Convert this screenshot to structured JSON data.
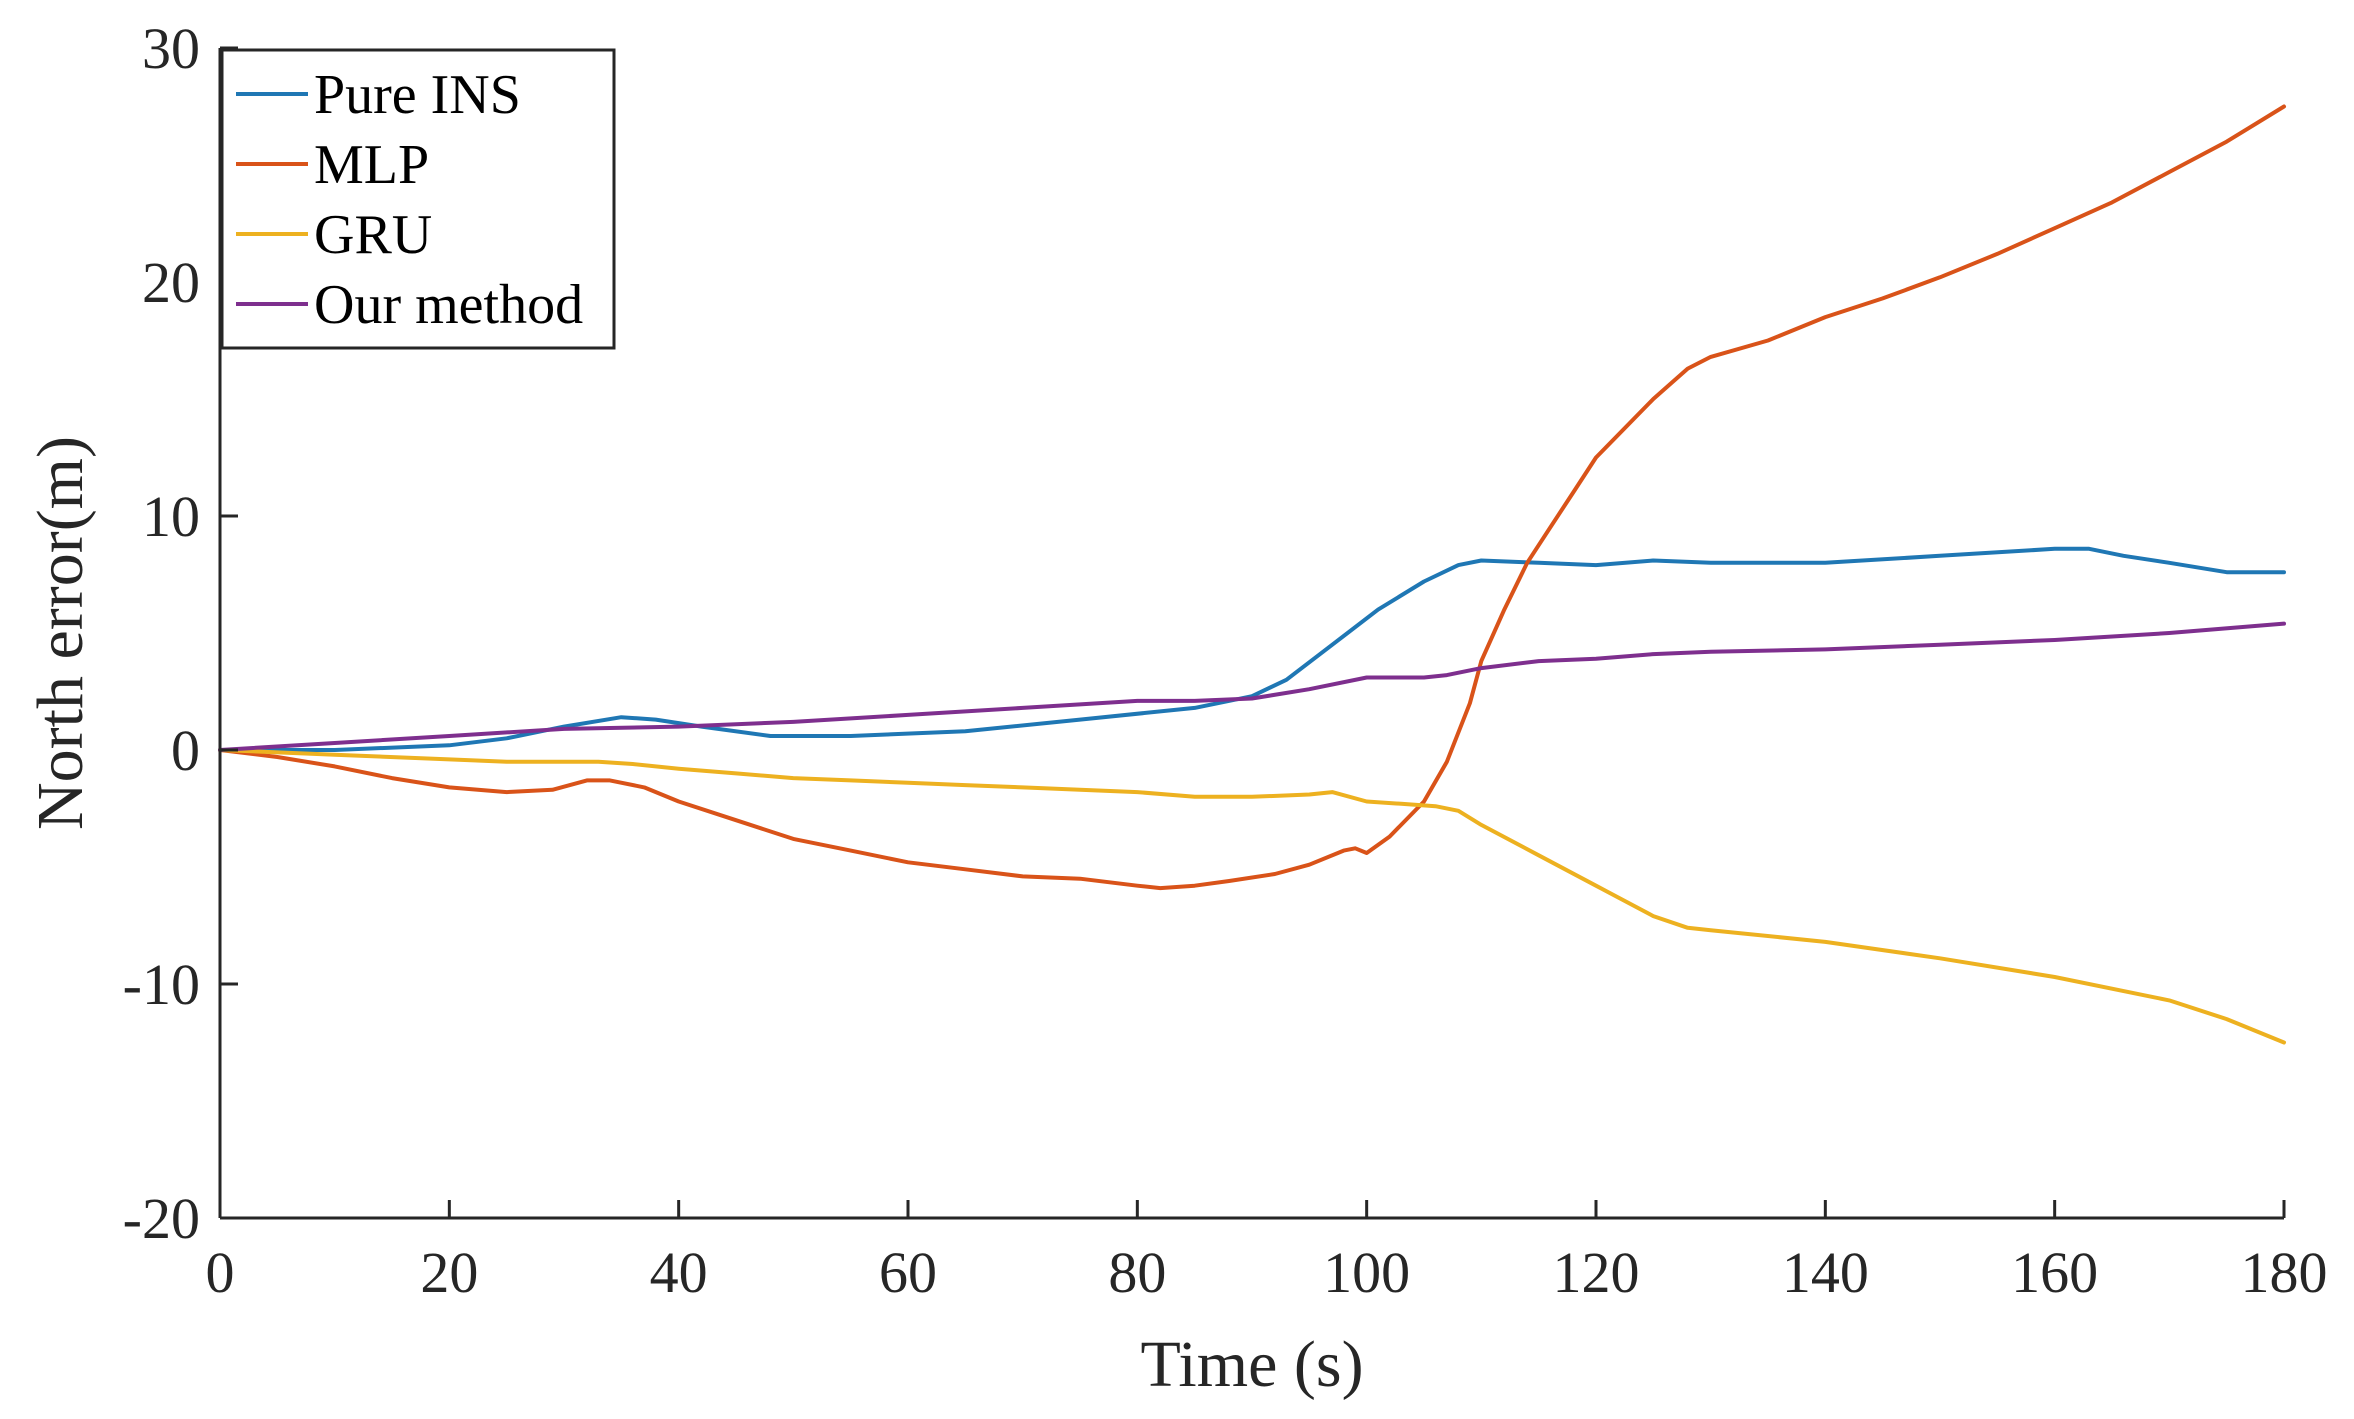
{
  "chart_data": {
    "type": "line",
    "title": "",
    "xlabel": "Time (s)",
    "ylabel": "North error(m)",
    "xlim": [
      0,
      180
    ],
    "ylim": [
      -20,
      30
    ],
    "xticks": [
      0,
      20,
      40,
      60,
      80,
      100,
      120,
      140,
      160,
      180
    ],
    "yticks": [
      -20,
      -10,
      0,
      10,
      20,
      30
    ],
    "grid": false,
    "legend": "top-left",
    "series": [
      {
        "name": "Pure INS",
        "color": "#1f77b4",
        "x": [
          0,
          10,
          20,
          25,
          30,
          35,
          38,
          42,
          48,
          55,
          65,
          75,
          85,
          90,
          93,
          97,
          101,
          105,
          108,
          110,
          115,
          120,
          125,
          130,
          140,
          150,
          160,
          163,
          166,
          170,
          175,
          180
        ],
        "y": [
          0,
          0,
          0.2,
          0.5,
          1.0,
          1.4,
          1.3,
          1.0,
          0.6,
          0.6,
          0.8,
          1.3,
          1.8,
          2.3,
          3.0,
          4.5,
          6.0,
          7.2,
          7.9,
          8.1,
          8.0,
          7.9,
          8.1,
          8.0,
          8.0,
          8.3,
          8.6,
          8.6,
          8.3,
          8.0,
          7.6,
          7.6
        ]
      },
      {
        "name": "MLP",
        "color": "#d95319",
        "x": [
          0,
          5,
          10,
          15,
          20,
          25,
          29,
          32,
          34,
          37,
          40,
          45,
          50,
          55,
          60,
          65,
          70,
          75,
          80,
          82,
          85,
          88,
          92,
          95,
          98,
          99,
          100,
          102,
          105,
          107,
          109,
          110,
          112,
          114,
          116,
          118,
          120,
          122,
          125,
          128,
          130,
          135,
          140,
          145,
          150,
          155,
          160,
          165,
          170,
          175,
          180
        ],
        "y": [
          0,
          -0.3,
          -0.7,
          -1.2,
          -1.6,
          -1.8,
          -1.7,
          -1.3,
          -1.3,
          -1.6,
          -2.2,
          -3.0,
          -3.8,
          -4.3,
          -4.8,
          -5.1,
          -5.4,
          -5.5,
          -5.8,
          -5.9,
          -5.8,
          -5.6,
          -5.3,
          -4.9,
          -4.3,
          -4.2,
          -4.4,
          -3.7,
          -2.2,
          -0.5,
          2.0,
          3.8,
          6.0,
          8.0,
          9.5,
          11.0,
          12.5,
          13.5,
          15.0,
          16.3,
          16.8,
          17.5,
          18.5,
          19.3,
          20.2,
          21.2,
          22.3,
          23.4,
          24.7,
          26.0,
          27.5
        ]
      },
      {
        "name": "GRU",
        "color": "#edb120",
        "x": [
          0,
          10,
          20,
          25,
          30,
          33,
          36,
          40,
          45,
          50,
          55,
          60,
          65,
          70,
          75,
          80,
          85,
          90,
          95,
          97,
          100,
          103,
          106,
          108,
          110,
          115,
          120,
          125,
          128,
          130,
          140,
          150,
          160,
          170,
          175,
          180
        ],
        "y": [
          0,
          -0.2,
          -0.4,
          -0.5,
          -0.5,
          -0.5,
          -0.6,
          -0.8,
          -1.0,
          -1.2,
          -1.3,
          -1.4,
          -1.5,
          -1.6,
          -1.7,
          -1.8,
          -2.0,
          -2.0,
          -1.9,
          -1.8,
          -2.2,
          -2.3,
          -2.4,
          -2.6,
          -3.2,
          -4.5,
          -5.8,
          -7.1,
          -7.6,
          -7.7,
          -8.2,
          -8.9,
          -9.7,
          -10.7,
          -11.5,
          -12.5
        ]
      },
      {
        "name": "Our method",
        "color": "#7e2f8e",
        "x": [
          0,
          10,
          20,
          30,
          40,
          50,
          60,
          70,
          80,
          85,
          90,
          95,
          100,
          105,
          107,
          110,
          115,
          120,
          125,
          130,
          140,
          150,
          160,
          170,
          180
        ],
        "y": [
          0,
          0.3,
          0.6,
          0.9,
          1.0,
          1.2,
          1.5,
          1.8,
          2.1,
          2.1,
          2.2,
          2.6,
          3.1,
          3.1,
          3.2,
          3.5,
          3.8,
          3.9,
          4.1,
          4.2,
          4.3,
          4.5,
          4.7,
          5.0,
          5.4
        ]
      }
    ]
  }
}
